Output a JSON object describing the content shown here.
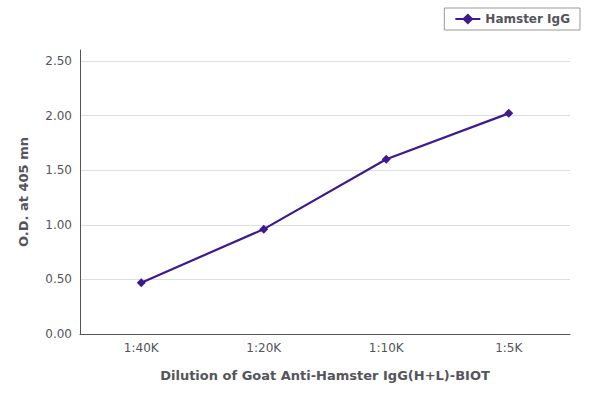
{
  "chart_data": {
    "type": "line",
    "xlabel": "Dilution of Goat Anti-Hamster IgG(H+L)-BIOT",
    "ylabel": "O.D. at 405 mn",
    "categories": [
      "1:40K",
      "1:20K",
      "1:10K",
      "1:5K"
    ],
    "series": [
      {
        "name": "Hamster IgG",
        "color": "#3d1a8e",
        "marker": "diamond",
        "line_style": "solid",
        "values": [
          0.47,
          0.96,
          1.6,
          2.02
        ]
      }
    ],
    "ylim": [
      0,
      2.6
    ],
    "yticks": [
      {
        "value": 0,
        "label": "0.00"
      },
      {
        "value": 0.5,
        "label": "0.50"
      },
      {
        "value": 1,
        "label": "1.00"
      },
      {
        "value": 1.5,
        "label": "1.50"
      },
      {
        "value": 2,
        "label": "2.00"
      },
      {
        "value": 2.5,
        "label": "2.50"
      }
    ],
    "grid": true,
    "legend": "upper right"
  }
}
